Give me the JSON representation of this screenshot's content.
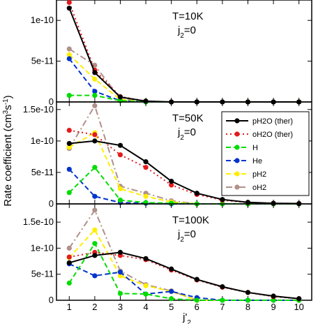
{
  "chart_data": {
    "type": "line",
    "ylabel": "Rate coefficient (cm3s-1)",
    "xlabel": "j'2",
    "x": [
      1,
      2,
      3,
      4,
      5,
      6,
      7,
      8,
      9,
      10
    ],
    "xticks": [
      "1",
      "2",
      "3",
      "4",
      "5",
      "6",
      "7",
      "8",
      "9",
      "10"
    ],
    "legend": {
      "placement": "top-right of middle panel",
      "entries": [
        {
          "key": "pH2O_ther",
          "label": "pH2O (ther)",
          "color": "#000000",
          "dash": "solid"
        },
        {
          "key": "oH2O_ther",
          "label": "oH2O (ther)",
          "color": "#e41a1c",
          "dash": "dotted"
        },
        {
          "key": "H",
          "label": "H",
          "color": "#00dd00",
          "dash": "dashed"
        },
        {
          "key": "He",
          "label": "He",
          "color": "#0033cc",
          "dash": "dashed"
        },
        {
          "key": "pH2",
          "label": "pH2",
          "color": "#ffee00",
          "dash": "dashed"
        },
        {
          "key": "oH2",
          "label": "oH2",
          "color": "#b0908a",
          "dash": "dashdot"
        }
      ]
    },
    "panels": [
      {
        "annotation_T": "T=10K",
        "annotation_j": "j2=0",
        "ylim": [
          0,
          1.25e-10
        ],
        "yticks": [
          {
            "value": 0,
            "label": "0"
          },
          {
            "value": 5e-11,
            "label": "5e-11"
          },
          {
            "value": 1e-10,
            "label": "1e-10"
          }
        ],
        "series": [
          {
            "key": "pH2O_ther",
            "values": [
              1.15e-10,
              3.6e-11,
              6e-12,
              1e-12,
              0,
              0,
              0,
              0,
              0,
              0
            ]
          },
          {
            "key": "oH2O_ther",
            "values": [
              1.22e-10,
              3.9e-11,
              6.5e-12,
              1e-12,
              0,
              0,
              0,
              0,
              0,
              0
            ]
          },
          {
            "key": "H",
            "values": [
              8e-12,
              8e-12,
              1.5e-12,
              0,
              0,
              0,
              0,
              0,
              0,
              0
            ]
          },
          {
            "key": "He",
            "values": [
              5.3e-11,
              1.3e-11,
              1.5e-12,
              0,
              0,
              0,
              0,
              0,
              0,
              0
            ]
          },
          {
            "key": "pH2",
            "values": [
              5.8e-11,
              2.8e-11,
              3e-12,
              0,
              0,
              0,
              0,
              0,
              0,
              0
            ]
          },
          {
            "key": "oH2",
            "values": [
              6.5e-11,
              4.5e-11,
              4e-12,
              0,
              0,
              0,
              0,
              0,
              0,
              0
            ]
          }
        ]
      },
      {
        "annotation_T": "T=50K",
        "annotation_j": "j2=0",
        "ylim": [
          0,
          1.62e-10
        ],
        "yticks": [
          {
            "value": 0,
            "label": "0"
          },
          {
            "value": 5e-11,
            "label": "5e-11"
          },
          {
            "value": 1e-10,
            "label": "1e-10"
          },
          {
            "value": 1.5e-10,
            "label": "1.5e-10"
          }
        ],
        "series": [
          {
            "key": "pH2O_ther",
            "values": [
              9.6e-11,
              1e-10,
              9.3e-11,
              6.7e-11,
              3.6e-11,
              1.7e-11,
              7e-12,
              2.5e-12,
              1e-12,
              5e-13
            ]
          },
          {
            "key": "oH2O_ther",
            "values": [
              1.17e-10,
              1.1e-10,
              7.8e-11,
              5.8e-11,
              3e-11,
              1.5e-11,
              6e-12,
              2e-12,
              8e-13,
              4e-13
            ]
          },
          {
            "key": "H",
            "values": [
              1.8e-11,
              5.8e-11,
              6e-12,
              2e-12,
              1e-12,
              0,
              0,
              0,
              0,
              0
            ]
          },
          {
            "key": "He",
            "values": [
              5.5e-11,
              1.2e-11,
              2e-12,
              1e-12,
              0,
              0,
              0,
              0,
              0,
              0
            ]
          },
          {
            "key": "pH2",
            "values": [
              9e-11,
              1.13e-10,
              2.4e-11,
              1.2e-11,
              3e-12,
              0,
              0,
              0,
              0,
              0
            ]
          },
          {
            "key": "oH2",
            "values": [
              8.8e-11,
              1.56e-10,
              2.8e-11,
              1.7e-11,
              5e-12,
              0,
              0,
              0,
              0,
              0
            ]
          }
        ]
      },
      {
        "annotation_T": "T=100K",
        "annotation_j": "j2=0",
        "ylim": [
          0,
          1.85e-10
        ],
        "yticks": [
          {
            "value": 0,
            "label": "0"
          },
          {
            "value": 5e-11,
            "label": "5e-11"
          },
          {
            "value": 1e-10,
            "label": "1e-10"
          },
          {
            "value": 1.5e-10,
            "label": "1.5e-10"
          }
        ],
        "series": [
          {
            "key": "pH2O_ther",
            "values": [
              7.2e-11,
              8.6e-11,
              9.2e-11,
              8e-11,
              6e-11,
              4e-11,
              2.6e-11,
              1.5e-11,
              8e-12,
              3e-12
            ]
          },
          {
            "key": "oH2O_ther",
            "values": [
              8.3e-11,
              9.2e-11,
              8.6e-11,
              7.8e-11,
              5.8e-11,
              3.9e-11,
              2.5e-11,
              1.5e-11,
              7e-12,
              3e-12
            ]
          },
          {
            "key": "H",
            "values": [
              3.3e-11,
              1.09e-10,
              1.3e-11,
              1.2e-11,
              3e-12,
              0,
              0,
              0,
              0,
              0
            ]
          },
          {
            "key": "He",
            "values": [
              7e-11,
              4.7e-11,
              5.4e-11,
              1.2e-11,
              1.7e-11,
              5e-12,
              0,
              0,
              0,
              0
            ]
          },
          {
            "key": "pH2",
            "values": [
              8.2e-11,
              1.35e-10,
              4.7e-11,
              2.8e-11,
              1.7e-11,
              0,
              0,
              0,
              0,
              0
            ]
          },
          {
            "key": "oH2",
            "values": [
              1e-10,
              1.73e-10,
              5.6e-11,
              3e-11,
              1.8e-11,
              0,
              0,
              0,
              0,
              0
            ]
          }
        ]
      }
    ]
  }
}
